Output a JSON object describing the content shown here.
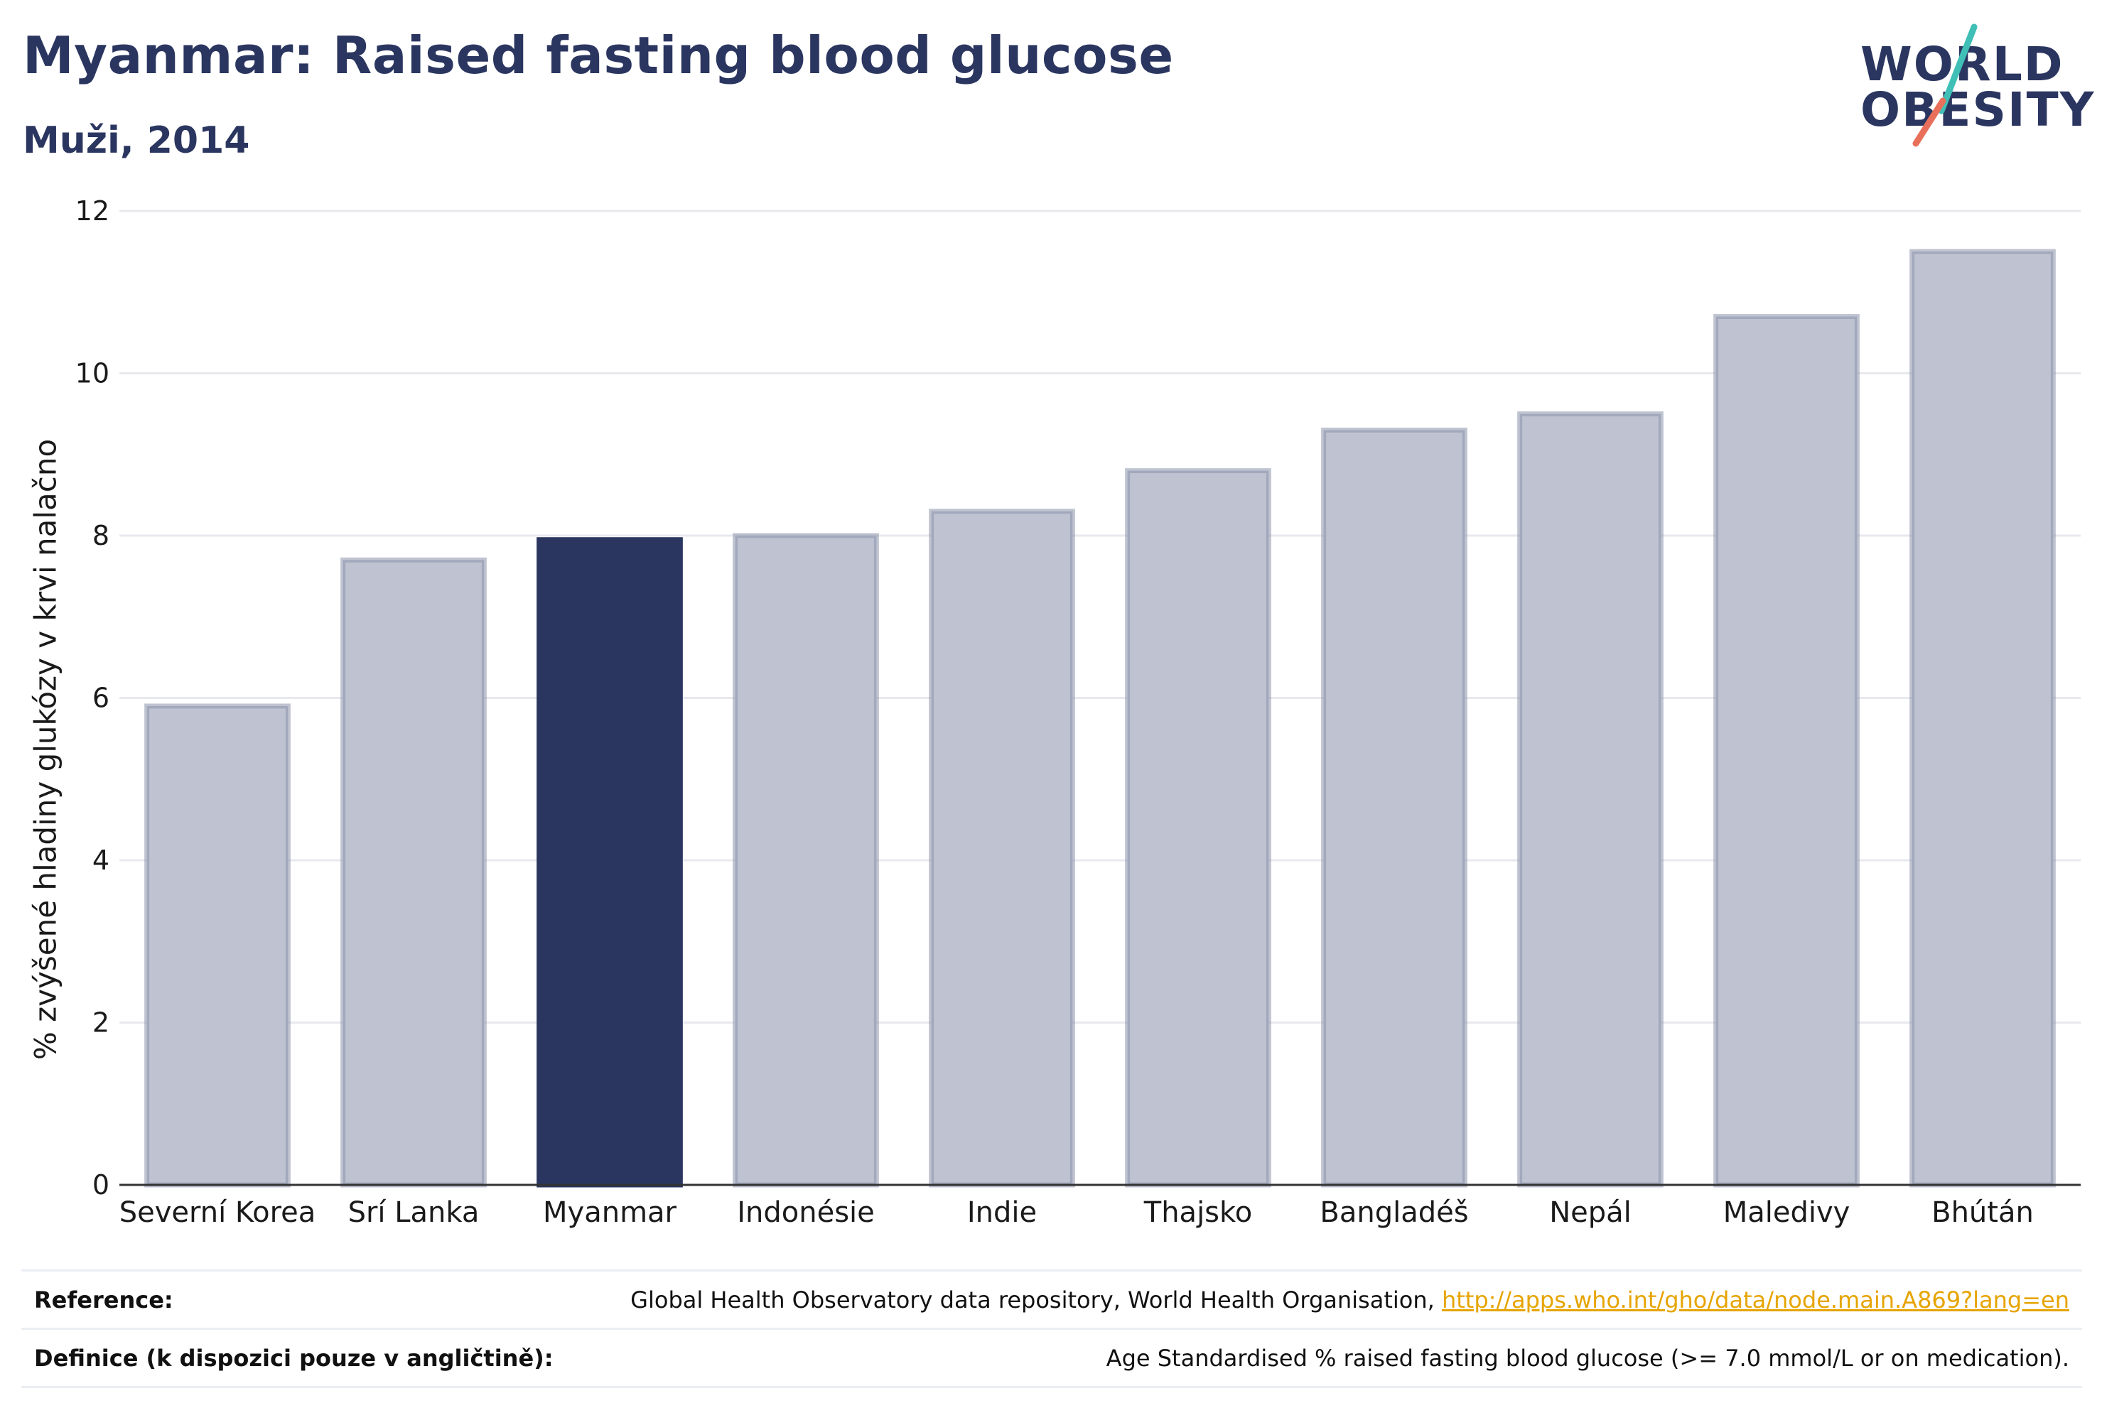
{
  "header": {
    "title": "Myanmar: Raised fasting blood glucose",
    "subtitle": "Muži, 2014"
  },
  "logo": {
    "line1": "WORLD",
    "line2": "OBESITY",
    "slash_colors": [
      "#3fbfb6",
      "#e8705a"
    ]
  },
  "colors": {
    "highlight": "#2b3660",
    "bar": "#bfc3d1",
    "bar_border": "#8d93ab",
    "grid": "#e8e9ee",
    "axis": "#333333"
  },
  "chart_data": {
    "type": "bar",
    "ylabel": "% zvýšené hladiny glukózy v krvi nalačno",
    "xlabel": "",
    "ylim": [
      0,
      12
    ],
    "yticks": [
      0,
      2,
      4,
      6,
      8,
      10,
      12
    ],
    "grid": true,
    "highlight_category": "Myanmar",
    "categories": [
      "Severní Korea",
      "Srí Lanka",
      "Myanmar",
      "Indonésie",
      "Indie",
      "Thajsko",
      "Bangladéš",
      "Nepál",
      "Maledivy",
      "Bhútán"
    ],
    "values": [
      5.9,
      7.7,
      7.95,
      8.0,
      8.3,
      8.8,
      9.3,
      9.5,
      10.7,
      11.5
    ]
  },
  "footer": {
    "reference_label": "Reference:",
    "reference_text": "Global Health Observatory data repository, World Health Organisation, ",
    "reference_link": "http://apps.who.int/gho/data/node.main.A869?lang=en",
    "definition_label": "Definice (k dispozici pouze v angličtině):",
    "definition_text": "Age Standardised % raised fasting blood glucose (>= 7.0 mmol/L or on medication)."
  }
}
